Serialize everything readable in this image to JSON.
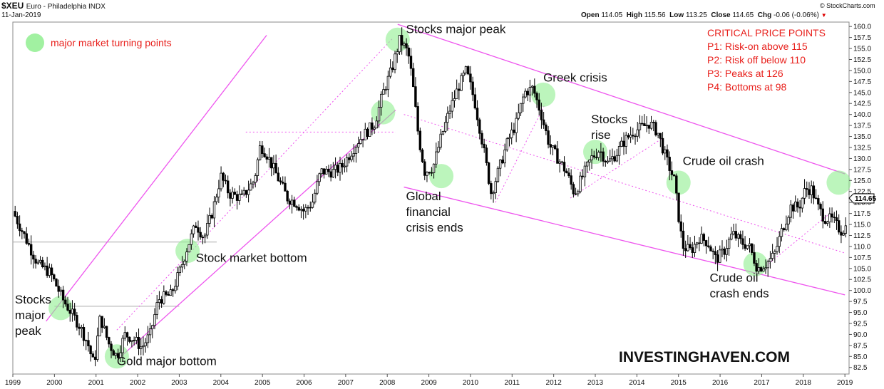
{
  "header": {
    "symbol": "$XEU",
    "description": "Euro - Philadelphia INDX",
    "date": "11-Jan-2019",
    "credit": "© StockCharts.com",
    "ohlc": {
      "open_label": "Open",
      "open": "114.05",
      "high_label": "High",
      "high": "115.56",
      "low_label": "Low",
      "low": "113.25",
      "close_label": "Close",
      "close": "114.65",
      "chg_label": "Chg",
      "chg": "-0.06 (-0.06%)",
      "chg_icon": "down-triangle-icon"
    }
  },
  "legend": {
    "label": "major market turning points",
    "color": "#90ee90"
  },
  "critical_points": {
    "title": "CRITICAL PRICE POINTS",
    "items": [
      "P1: Risk-on above 115",
      "P2: Risk off below 110",
      "P3: Peaks at 126",
      "P4: Bottoms at 98"
    ],
    "color": "#e8201c"
  },
  "watermark": "INVESTINGHAVEN.COM",
  "last_price_tag": "114.65",
  "colors": {
    "channel": "#ee55ee",
    "candle": "#000000",
    "turning_point": "#90ee90",
    "annotation": "#111111"
  },
  "chart_data": {
    "type": "candlestick",
    "title": "$XEU Euro - Philadelphia INDX",
    "x_ticks": [
      "1999",
      "2000",
      "2001",
      "2002",
      "2003",
      "2004",
      "2005",
      "2006",
      "2007",
      "2008",
      "2009",
      "2010",
      "2011",
      "2012",
      "2013",
      "2014",
      "2015",
      "2016",
      "2017",
      "2018",
      "2019"
    ],
    "y_ticks": [
      "82.5",
      "85.0",
      "87.5",
      "90.0",
      "92.5",
      "95.0",
      "97.5",
      "100.0",
      "102.5",
      "105.0",
      "107.5",
      "110.0",
      "112.5",
      "115.0",
      "117.5",
      "120.0",
      "122.5",
      "125.0",
      "127.5",
      "130.0",
      "132.5",
      "135.0",
      "137.5",
      "140.0",
      "142.5",
      "145.0",
      "147.5",
      "150.0",
      "152.5",
      "155.0",
      "157.5",
      "160.0"
    ],
    "y_range": [
      81,
      161
    ],
    "x_range": [
      1999.0,
      2019.1
    ],
    "price_path": [
      [
        1999.0,
        118.0
      ],
      [
        1999.3,
        112.0
      ],
      [
        1999.6,
        106.0
      ],
      [
        1999.9,
        104.0
      ],
      [
        2000.2,
        98.0
      ],
      [
        2000.4,
        95.0
      ],
      [
        2000.6,
        92.0
      ],
      [
        2000.8,
        88.0
      ],
      [
        2000.95,
        83.0
      ],
      [
        2001.1,
        94.0
      ],
      [
        2001.3,
        88.0
      ],
      [
        2001.5,
        85.0
      ],
      [
        2001.7,
        90.0
      ],
      [
        2001.9,
        89.0
      ],
      [
        2002.1,
        87.0
      ],
      [
        2002.3,
        90.0
      ],
      [
        2002.5,
        98.0
      ],
      [
        2002.8,
        99.0
      ],
      [
        2003.0,
        104.0
      ],
      [
        2003.2,
        110.0
      ],
      [
        2003.4,
        115.0
      ],
      [
        2003.6,
        112.0
      ],
      [
        2003.8,
        118.0
      ],
      [
        2004.0,
        126.0
      ],
      [
        2004.2,
        122.0
      ],
      [
        2004.5,
        121.0
      ],
      [
        2004.8,
        125.0
      ],
      [
        2004.95,
        133.0
      ],
      [
        2005.1,
        131.0
      ],
      [
        2005.3,
        127.0
      ],
      [
        2005.6,
        121.0
      ],
      [
        2005.8,
        120.0
      ],
      [
        2006.0,
        118.0
      ],
      [
        2006.2,
        120.0
      ],
      [
        2006.4,
        127.0
      ],
      [
        2006.7,
        127.0
      ],
      [
        2006.9,
        128.0
      ],
      [
        2007.1,
        131.0
      ],
      [
        2007.3,
        134.0
      ],
      [
        2007.5,
        136.0
      ],
      [
        2007.7,
        138.0
      ],
      [
        2007.9,
        145.0
      ],
      [
        2008.1,
        150.0
      ],
      [
        2008.3,
        157.0
      ],
      [
        2008.5,
        154.0
      ],
      [
        2008.6,
        148.0
      ],
      [
        2008.75,
        135.0
      ],
      [
        2008.9,
        127.0
      ],
      [
        2009.1,
        128.0
      ],
      [
        2009.3,
        135.0
      ],
      [
        2009.5,
        141.0
      ],
      [
        2009.7,
        146.0
      ],
      [
        2009.9,
        150.0
      ],
      [
        2010.1,
        143.0
      ],
      [
        2010.3,
        133.0
      ],
      [
        2010.5,
        122.0
      ],
      [
        2010.7,
        128.0
      ],
      [
        2010.9,
        134.0
      ],
      [
        2011.1,
        138.0
      ],
      [
        2011.3,
        145.0
      ],
      [
        2011.5,
        146.0
      ],
      [
        2011.7,
        140.0
      ],
      [
        2011.9,
        133.0
      ],
      [
        2012.1,
        130.0
      ],
      [
        2012.3,
        127.0
      ],
      [
        2012.5,
        122.0
      ],
      [
        2012.7,
        126.0
      ],
      [
        2012.9,
        130.0
      ],
      [
        2013.1,
        132.0
      ],
      [
        2013.3,
        129.0
      ],
      [
        2013.5,
        131.0
      ],
      [
        2013.7,
        134.0
      ],
      [
        2013.9,
        136.0
      ],
      [
        2014.1,
        137.0
      ],
      [
        2014.3,
        138.0
      ],
      [
        2014.5,
        136.0
      ],
      [
        2014.7,
        130.0
      ],
      [
        2014.9,
        125.0
      ],
      [
        2015.0,
        117.0
      ],
      [
        2015.1,
        110.0
      ],
      [
        2015.3,
        109.0
      ],
      [
        2015.5,
        112.0
      ],
      [
        2015.7,
        111.0
      ],
      [
        2015.9,
        107.0
      ],
      [
        2016.1,
        109.0
      ],
      [
        2016.3,
        113.0
      ],
      [
        2016.5,
        111.0
      ],
      [
        2016.7,
        110.0
      ],
      [
        2016.9,
        105.0
      ],
      [
        2017.1,
        106.0
      ],
      [
        2017.3,
        108.0
      ],
      [
        2017.5,
        114.0
      ],
      [
        2017.7,
        119.0
      ],
      [
        2017.9,
        119.0
      ],
      [
        2018.05,
        123.0
      ],
      [
        2018.2,
        123.0
      ],
      [
        2018.35,
        119.0
      ],
      [
        2018.5,
        116.5
      ],
      [
        2018.7,
        116.0
      ],
      [
        2018.9,
        113.5
      ],
      [
        2019.05,
        114.65
      ]
    ],
    "channels": [
      {
        "style": "solid",
        "points": [
          [
            1999.8,
            93.0
          ],
          [
            2005.1,
            158.0
          ]
        ]
      },
      {
        "style": "solid",
        "points": [
          [
            2001.6,
            85.0
          ],
          [
            2008.2,
            141.0
          ]
        ]
      },
      {
        "style": "dotted",
        "points": [
          [
            2001.5,
            91.0
          ],
          [
            2008.15,
            157.5
          ]
        ]
      },
      {
        "style": "dotted",
        "points": [
          [
            2004.6,
            136.0
          ],
          [
            2008.2,
            136.0
          ]
        ]
      },
      {
        "style": "solid",
        "points": [
          [
            2008.25,
            160.5
          ],
          [
            2019.0,
            126.5
          ]
        ]
      },
      {
        "style": "solid",
        "points": [
          [
            2008.4,
            123.5
          ],
          [
            2019.0,
            99.0
          ]
        ]
      },
      {
        "style": "dotted",
        "points": [
          [
            2008.4,
            140.0
          ],
          [
            2019.0,
            108.5
          ]
        ]
      },
      {
        "style": "dotted",
        "points": [
          [
            2010.6,
            120.0
          ],
          [
            2011.8,
            142.5
          ]
        ]
      },
      {
        "style": "dotted",
        "points": [
          [
            2012.4,
            121.0
          ],
          [
            2014.6,
            134.5
          ]
        ]
      },
      {
        "style": "dotted",
        "points": [
          [
            2016.9,
            104.0
          ],
          [
            2018.7,
            118.0
          ]
        ]
      }
    ],
    "reference_lines": [
      {
        "price": 111.0,
        "from": 1999.0,
        "to": 2003.9
      },
      {
        "price": 96.4,
        "from": 2000.0,
        "to": 2003.0
      }
    ],
    "turning_points": [
      {
        "x": 1999.6,
        "y": 159.0,
        "legend": true
      },
      {
        "x": 2000.15,
        "y": 96.0
      },
      {
        "x": 2001.5,
        "y": 85.0
      },
      {
        "x": 2003.2,
        "y": 109.0
      },
      {
        "x": 2007.9,
        "y": 140.5
      },
      {
        "x": 2008.25,
        "y": 157.0
      },
      {
        "x": 2009.3,
        "y": 126.0
      },
      {
        "x": 2011.75,
        "y": 144.5
      },
      {
        "x": 2013.0,
        "y": 131.5
      },
      {
        "x": 2015.0,
        "y": 124.5
      },
      {
        "x": 2016.85,
        "y": 106.0
      },
      {
        "x": 2018.85,
        "y": 124.5
      }
    ],
    "annotations": [
      {
        "lines": [
          "Stocks",
          "major",
          "peak"
        ],
        "x": 1999.05,
        "y": 97.0
      },
      {
        "lines": [
          "Gold major bottom"
        ],
        "x": 2001.5,
        "y": 83.0
      },
      {
        "lines": [
          "Stock market bottom"
        ],
        "x": 2003.4,
        "y": 106.5
      },
      {
        "lines": [
          "Stocks major peak"
        ],
        "x": 2008.45,
        "y": 158.5
      },
      {
        "lines": [
          "Global",
          "financial",
          "crisis ends"
        ],
        "x": 2008.45,
        "y": 120.5
      },
      {
        "lines": [
          "Greek crisis"
        ],
        "x": 2011.75,
        "y": 147.5
      },
      {
        "lines": [
          "Stocks",
          "rise"
        ],
        "x": 2012.9,
        "y": 138.0
      },
      {
        "lines": [
          "Crude oil crash"
        ],
        "x": 2015.1,
        "y": 128.5
      },
      {
        "lines": [
          "Crude oil",
          "crash ends"
        ],
        "x": 2015.75,
        "y": 102.0
      }
    ]
  }
}
